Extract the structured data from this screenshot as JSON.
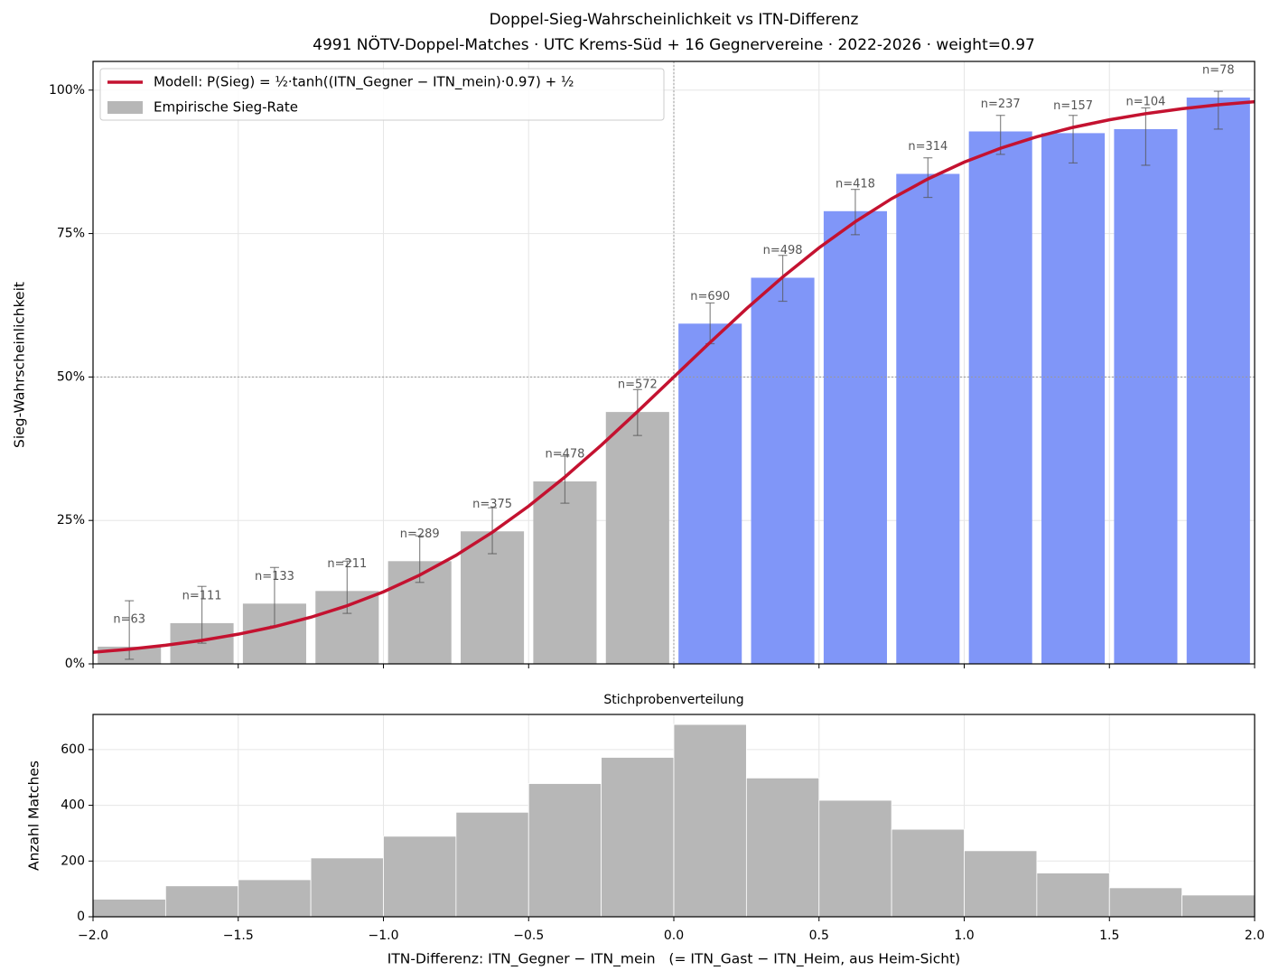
{
  "chart_data": [
    {
      "type": "bar",
      "title": "Doppel-Sieg-Wahrscheinlichkeit vs ITN-Differenz",
      "subtitle": "4991 NÖTV-Doppel-Matches · UTC Krems-Süd + 16 Gegnervereine · 2022-2026 · weight=0.97",
      "ylabel": "Sieg-Wahrscheinlichkeit",
      "name": "Empirische Sieg-Rate",
      "legend_color": "#b7b7b7",
      "x": [
        -1.875,
        -1.625,
        -1.375,
        -1.125,
        -0.875,
        -0.625,
        -0.375,
        -0.125,
        0.125,
        0.375,
        0.625,
        0.875,
        1.125,
        1.375,
        1.625,
        1.875
      ],
      "values": [
        3.0,
        7.1,
        10.5,
        12.7,
        17.9,
        23.1,
        31.8,
        43.9,
        59.3,
        67.3,
        78.9,
        85.4,
        92.8,
        92.5,
        93.2,
        98.7
      ],
      "ci_low": [
        0.8,
        3.6,
        6.6,
        8.8,
        14.2,
        19.2,
        28.0,
        39.8,
        55.8,
        63.2,
        74.8,
        81.3,
        88.8,
        87.3,
        86.9,
        93.2
      ],
      "ci_high": [
        11.0,
        13.5,
        16.8,
        17.9,
        22.3,
        27.2,
        36.2,
        47.8,
        62.9,
        71.2,
        82.7,
        88.2,
        95.6,
        95.6,
        96.9,
        99.8
      ],
      "n": [
        63,
        111,
        133,
        211,
        289,
        375,
        478,
        572,
        690,
        498,
        418,
        314,
        237,
        157,
        104,
        78
      ],
      "n_labels": [
        "n=63",
        "n=111",
        "n=133",
        "n=211",
        "n=289",
        "n=375",
        "n=478",
        "n=572",
        "n=690",
        "n=498",
        "n=418",
        "n=314",
        "n=237",
        "n=157",
        "n=104",
        "n=78"
      ],
      "colors": [
        "#b7b7b7",
        "#b7b7b7",
        "#b7b7b7",
        "#b7b7b7",
        "#b7b7b7",
        "#b7b7b7",
        "#b7b7b7",
        "#b7b7b7",
        "#8096f8",
        "#8096f8",
        "#8096f8",
        "#8096f8",
        "#8096f8",
        "#8096f8",
        "#8096f8",
        "#8096f8"
      ],
      "line": {
        "name": "Modell: P(Sieg) = ½·tanh((ITN_Gegner − ITN_mein)·0.97) + ½",
        "color": "#c41230",
        "x": [
          -2,
          -1.875,
          -1.75,
          -1.625,
          -1.5,
          -1.375,
          -1.25,
          -1.125,
          -1,
          -0.875,
          -0.75,
          -0.625,
          -0.5,
          -0.375,
          -0.25,
          -0.125,
          0,
          0.125,
          0.25,
          0.375,
          0.5,
          0.625,
          0.75,
          0.875,
          1,
          1.125,
          1.25,
          1.375,
          1.5,
          1.625,
          1.75,
          1.875,
          2
        ],
        "values": [
          2.02,
          2.56,
          3.25,
          4.1,
          5.17,
          6.49,
          8.13,
          10.13,
          12.56,
          15.48,
          18.92,
          22.93,
          27.49,
          32.57,
          38.11,
          43.97,
          50,
          56.03,
          61.89,
          67.43,
          72.51,
          77.07,
          81.08,
          84.52,
          87.44,
          89.87,
          91.87,
          93.51,
          94.83,
          95.9,
          96.75,
          97.44,
          97.98
        ]
      },
      "xlim": [
        -2,
        2
      ],
      "xticks": [
        -2,
        -1.5,
        -1,
        -0.5,
        0,
        0.5,
        1,
        1.5,
        2
      ],
      "ylim": [
        0,
        105
      ],
      "yticks": [
        {
          "value": 0,
          "label": "0%"
        },
        {
          "value": 25,
          "label": "25%"
        },
        {
          "value": 50,
          "label": "50%"
        },
        {
          "value": 75,
          "label": "75%"
        },
        {
          "value": 100,
          "label": "100%"
        }
      ],
      "grid": true,
      "legend": "upper left",
      "reference_lines": {
        "x": 0,
        "y": 50
      }
    },
    {
      "type": "histogram",
      "title": "Stichprobenverteilung",
      "xlabel": "ITN-Differenz: ITN_Gegner − ITN_mein   (= ITN_Gast − ITN_Heim, aus Heim-Sicht)",
      "ylabel": "Anzahl Matches",
      "bins": [
        -2,
        -1.75,
        -1.5,
        -1.25,
        -1,
        -0.75,
        -0.5,
        -0.25,
        0,
        0.25,
        0.5,
        0.75,
        1,
        1.25,
        1.5,
        1.75,
        2
      ],
      "values": [
        63,
        111,
        133,
        211,
        289,
        375,
        478,
        572,
        690,
        498,
        418,
        314,
        237,
        157,
        104,
        78
      ],
      "color": "#b7b7b7",
      "xlim": [
        -2,
        2
      ],
      "xticks": [
        {
          "value": -2,
          "label": "−2.0"
        },
        {
          "value": -1.5,
          "label": "−1.5"
        },
        {
          "value": -1,
          "label": "−1.0"
        },
        {
          "value": -0.5,
          "label": "−0.5"
        },
        {
          "value": 0,
          "label": "0.0"
        },
        {
          "value": 0.5,
          "label": "0.5"
        },
        {
          "value": 1,
          "label": "1.0"
        },
        {
          "value": 1.5,
          "label": "1.5"
        },
        {
          "value": 2,
          "label": "2.0"
        }
      ],
      "ylim": [
        0,
        726
      ],
      "yticks": [
        0,
        200,
        400,
        600
      ],
      "grid": true
    }
  ]
}
